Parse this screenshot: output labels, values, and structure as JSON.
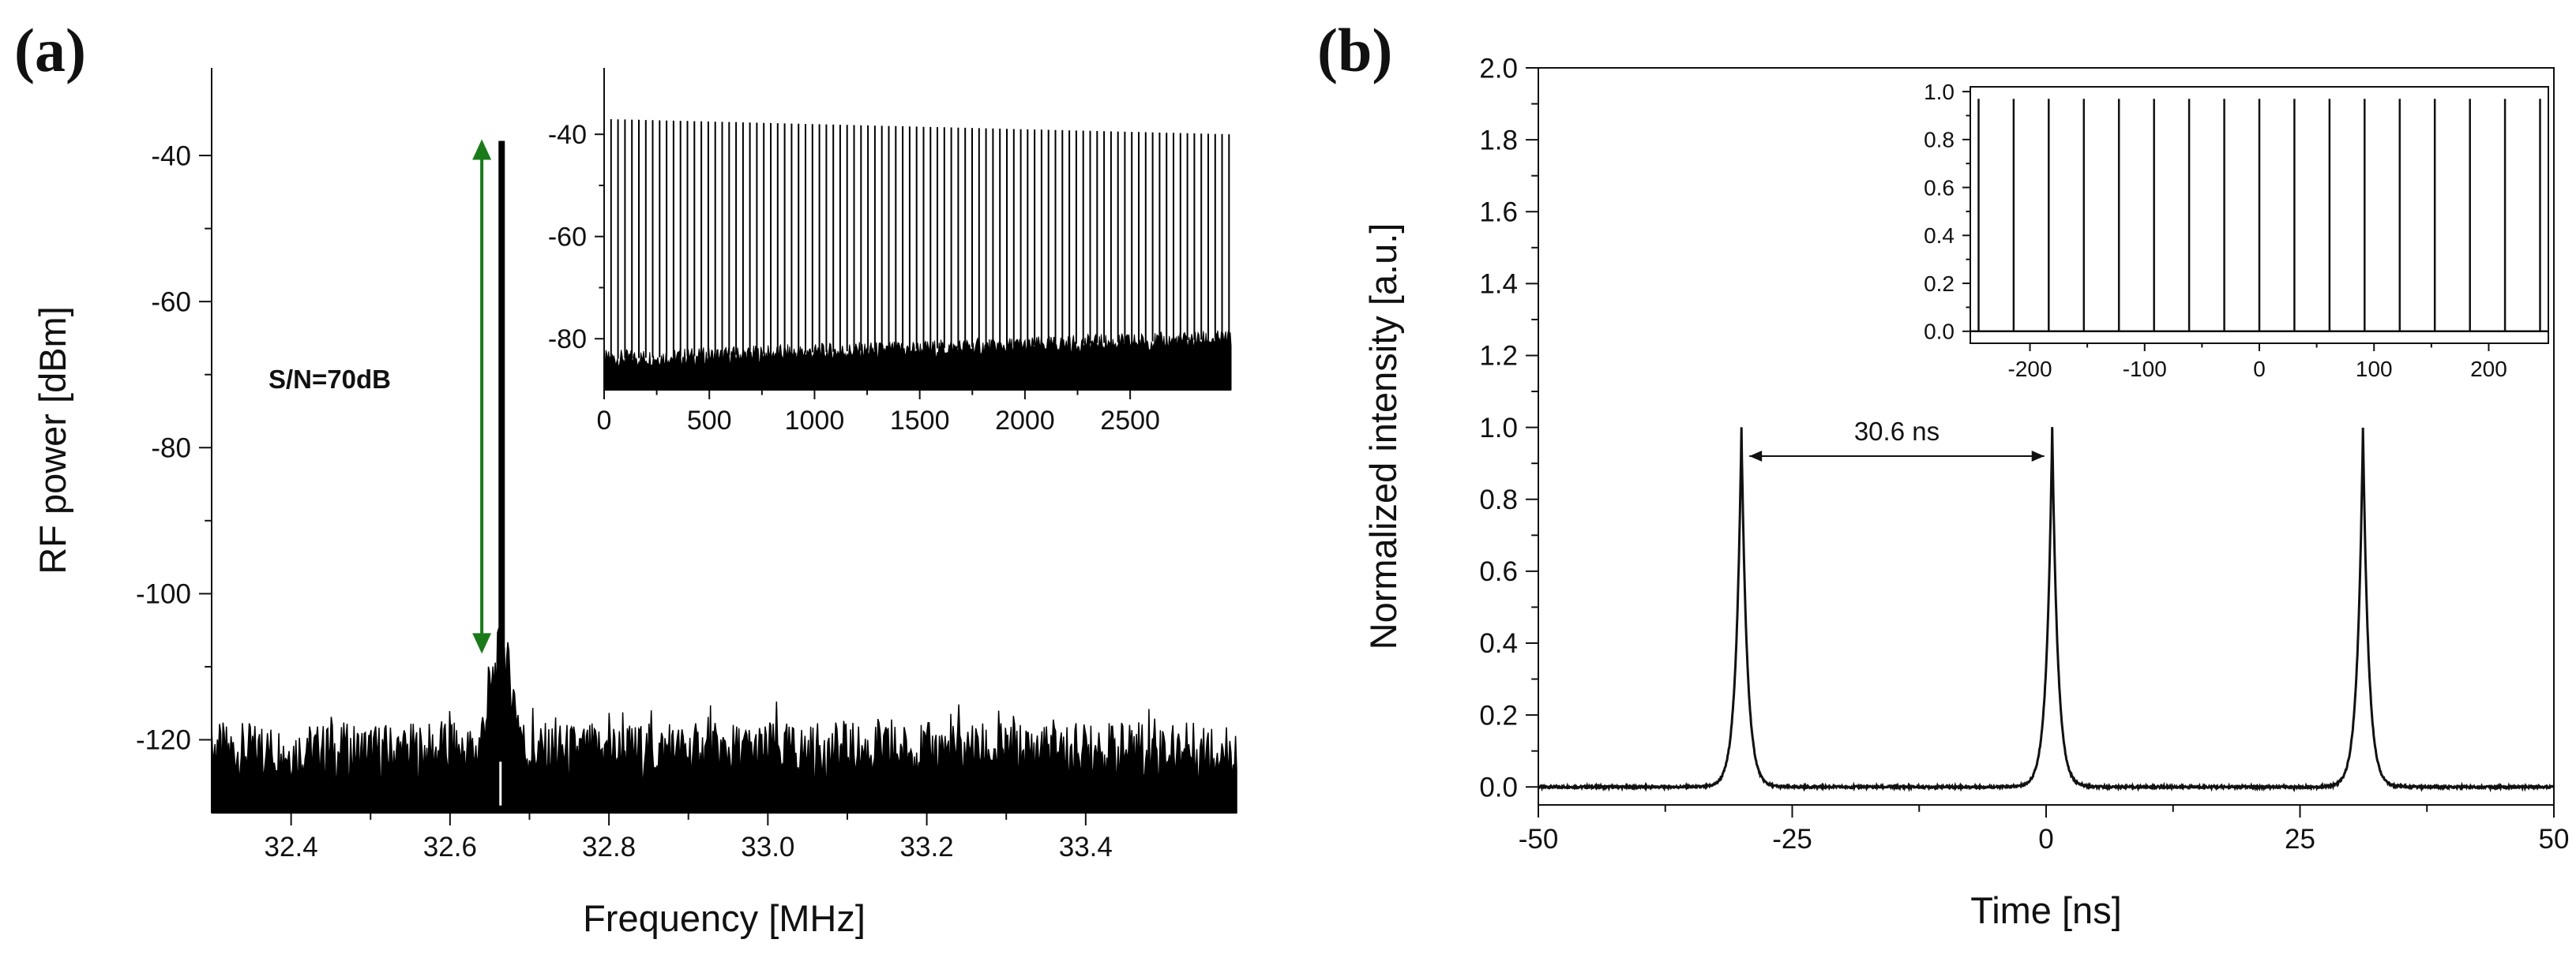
{
  "panel_a_label": "(a)",
  "panel_b_label": "(b)",
  "chart_data": [
    {
      "id": "a_main",
      "type": "line",
      "xlabel": "Frequency [MHz]",
      "ylabel": "RF power [dBm]",
      "xlim": [
        32.3,
        33.59
      ],
      "ylim": [
        -130,
        -28
      ],
      "xticks": [
        32.4,
        32.6,
        32.8,
        33.0,
        33.2,
        33.4
      ],
      "xtick_labels": [
        "32.4",
        "32.6",
        "32.8",
        "33.0",
        "33.2",
        "33.4"
      ],
      "yticks": [
        -40,
        -60,
        -80,
        -100,
        -120
      ],
      "ytick_labels": [
        "-40",
        "-60",
        "-80",
        "-100",
        "-120"
      ],
      "peak": {
        "x": 32.665,
        "y": -38
      },
      "noise_floor": -122,
      "annotation": {
        "text": "S/N=70dB",
        "from_y": -38,
        "to_y": -108,
        "x": 32.64,
        "color": "#1a7a1a"
      }
    },
    {
      "id": "a_inset",
      "type": "line",
      "xlim": [
        0,
        2980
      ],
      "ylim": [
        -90,
        -27
      ],
      "xticks": [
        0,
        500,
        1000,
        1500,
        2000,
        2500
      ],
      "xtick_labels": [
        "0",
        "500",
        "1000",
        "1500",
        "2000",
        "2500"
      ],
      "yticks": [
        -40,
        -60,
        -80
      ],
      "ytick_labels": [
        "-40",
        "-60",
        "-80"
      ],
      "harmonic_spacing": 33,
      "peak_start": -37,
      "peak_end": -40,
      "floor_start": -84,
      "floor_end": -80
    },
    {
      "id": "b_main",
      "type": "line",
      "xlabel": "Time [ns]",
      "ylabel": "Normalized intensity [a.u.]",
      "xlim": [
        -50,
        50
      ],
      "ylim": [
        -0.05,
        2.0
      ],
      "xticks": [
        -50,
        -25,
        0,
        25,
        50
      ],
      "xtick_labels": [
        "-50",
        "-25",
        "0",
        "25",
        "50"
      ],
      "yticks": [
        0.0,
        0.2,
        0.4,
        0.6,
        0.8,
        1.0,
        1.2,
        1.4,
        1.6,
        1.8,
        2.0
      ],
      "ytick_labels": [
        "0.0",
        "0.2",
        "0.4",
        "0.6",
        "0.8",
        "1.0",
        "1.2",
        "1.4",
        "1.6",
        "1.8",
        "2.0"
      ],
      "pulse_centers": [
        -30.0,
        0.6,
        31.2
      ],
      "pulse_peak": 1.0,
      "annotation": {
        "text": "30.6 ns",
        "from_x": -30.0,
        "to_x": 0.6,
        "y": 0.92
      }
    },
    {
      "id": "b_inset",
      "type": "line",
      "xlim": [
        -252,
        252
      ],
      "ylim": [
        -0.05,
        1.02
      ],
      "xticks": [
        -200,
        -100,
        0,
        100,
        200
      ],
      "xtick_labels": [
        "-200",
        "-100",
        "0",
        "100",
        "200"
      ],
      "yticks": [
        0.0,
        0.2,
        0.4,
        0.6,
        0.8,
        1.0
      ],
      "ytick_labels": [
        "0.0",
        "0.2",
        "0.4",
        "0.6",
        "0.8",
        "1.0"
      ],
      "pulse_period": 30.6,
      "pulse_first": -244.8
    }
  ]
}
